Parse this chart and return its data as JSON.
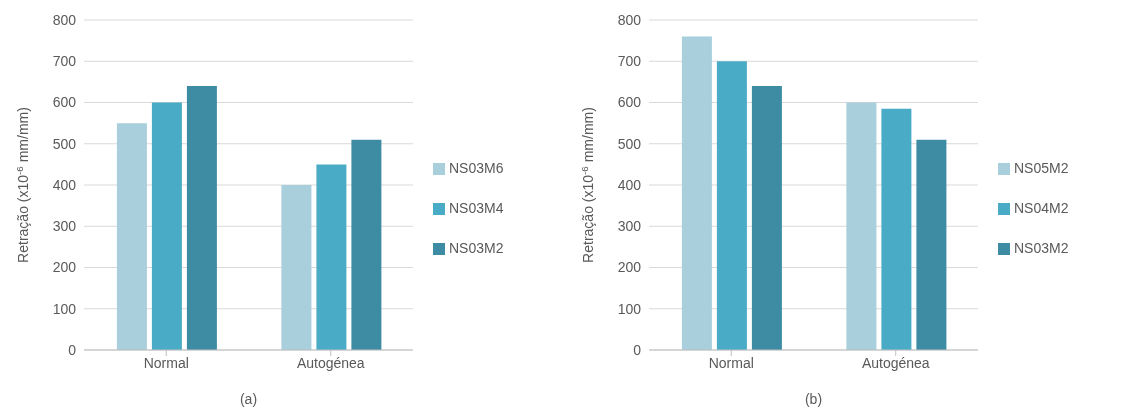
{
  "chart_data": [
    {
      "type": "bar",
      "xlabel": "(a)",
      "ylabel": "Retração (x10$^{-6}$ mm/mm)",
      "categories": [
        "Normal",
        "Autogénea"
      ],
      "series": [
        {
          "name": "NS03M6",
          "color": "#a9cedc",
          "values": [
            550,
            400
          ]
        },
        {
          "name": "NS03M4",
          "color": "#4aabc6",
          "values": [
            600,
            450
          ]
        },
        {
          "name": "NS03M2",
          "color": "#3d8ca4",
          "values": [
            640,
            510
          ]
        }
      ],
      "ylim": [
        0,
        800
      ],
      "yticks": [
        0,
        100,
        200,
        300,
        400,
        500,
        600,
        700,
        800
      ],
      "grid": "y",
      "legend": "right"
    },
    {
      "type": "bar",
      "xlabel": "(b)",
      "ylabel": "Retração (x10$^{-6}$ mm/mm)",
      "categories": [
        "Normal",
        "Autogénea"
      ],
      "series": [
        {
          "name": "NS05M2",
          "color": "#a9cedc",
          "values": [
            760,
            600
          ]
        },
        {
          "name": "NS04M2",
          "color": "#4aabc6",
          "values": [
            700,
            585
          ]
        },
        {
          "name": "NS03M2",
          "color": "#3d8ca4",
          "values": [
            640,
            510
          ]
        }
      ],
      "ylim": [
        0,
        800
      ],
      "yticks": [
        0,
        100,
        200,
        300,
        400,
        500,
        600,
        700,
        800
      ],
      "grid": "y",
      "legend": "right"
    }
  ]
}
